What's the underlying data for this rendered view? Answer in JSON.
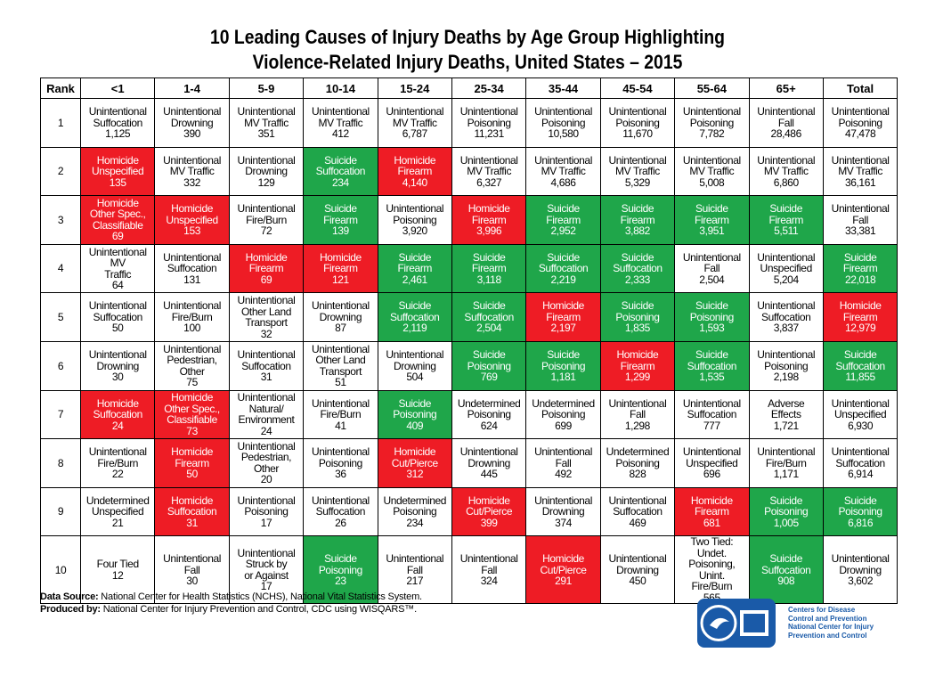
{
  "header": {
    "title_lines": [
      "10 Leading Causes of Injury Deaths by Age Group Highlighting",
      "Violence-Related Injury Deaths, United States – 2015"
    ]
  },
  "table": {
    "columns": [
      "Rank",
      "<1",
      "1-4",
      "5-9",
      "10-14",
      "15-24",
      "25-34",
      "35-44",
      "45-54",
      "55-64",
      "65+",
      "Total"
    ],
    "rows": [
      {
        "rank": "1",
        "cells": [
          {
            "cause": "Unintentional\nSuffocation",
            "count": "1,125"
          },
          {
            "cause": "Unintentional\nDrowning",
            "count": "390"
          },
          {
            "cause": "Unintentional\nMV Traffic",
            "count": "351"
          },
          {
            "cause": "Unintentional\nMV Traffic",
            "count": "412"
          },
          {
            "cause": "Unintentional\nMV Traffic",
            "count": "6,787"
          },
          {
            "cause": "Unintentional\nPoisoning",
            "count": "11,231"
          },
          {
            "cause": "Unintentional\nPoisoning",
            "count": "10,580"
          },
          {
            "cause": "Unintentional\nPoisoning",
            "count": "11,670"
          },
          {
            "cause": "Unintentional\nPoisoning",
            "count": "7,782"
          },
          {
            "cause": "Unintentional\nFall",
            "count": "28,486"
          },
          {
            "cause": "Unintentional\nPoisoning",
            "count": "47,478"
          }
        ]
      },
      {
        "rank": "2",
        "cells": [
          {
            "cause": "Homicide\nUnspecified",
            "count": "135",
            "color": "#ee1c25"
          },
          {
            "cause": "Unintentional\nMV Traffic",
            "count": "332"
          },
          {
            "cause": "Unintentional\nDrowning",
            "count": "129"
          },
          {
            "cause": "Suicide\nSuffocation",
            "count": "234",
            "color": "#1fa64a"
          },
          {
            "cause": "Homicide\nFirearm",
            "count": "4,140",
            "color": "#ee1c25"
          },
          {
            "cause": "Unintentional\nMV Traffic",
            "count": "6,327"
          },
          {
            "cause": "Unintentional\nMV Traffic",
            "count": "4,686"
          },
          {
            "cause": "Unintentional\nMV Traffic",
            "count": "5,329"
          },
          {
            "cause": "Unintentional\nMV Traffic",
            "count": "5,008"
          },
          {
            "cause": "Unintentional\nMV Traffic",
            "count": "6,860"
          },
          {
            "cause": "Unintentional\nMV Traffic",
            "count": "36,161"
          }
        ]
      },
      {
        "rank": "3",
        "cells": [
          {
            "cause": "Homicide\nOther Spec.,\nClassifiable",
            "count": "69",
            "color": "#ee1c25"
          },
          {
            "cause": "Homicide\nUnspecified",
            "count": "153",
            "color": "#ee1c25"
          },
          {
            "cause": "Unintentional\nFire/Burn",
            "count": "72"
          },
          {
            "cause": "Suicide\nFirearm",
            "count": "139",
            "color": "#1fa64a"
          },
          {
            "cause": "Unintentional\nPoisoning",
            "count": "3,920"
          },
          {
            "cause": "Homicide\nFirearm",
            "count": "3,996",
            "color": "#ee1c25"
          },
          {
            "cause": "Suicide\nFirearm",
            "count": "2,952",
            "color": "#1fa64a"
          },
          {
            "cause": "Suicide\nFirearm",
            "count": "3,882",
            "color": "#1fa64a"
          },
          {
            "cause": "Suicide\nFirearm",
            "count": "3,951",
            "color": "#1fa64a"
          },
          {
            "cause": "Suicide\nFirearm",
            "count": "5,511",
            "color": "#1fa64a"
          },
          {
            "cause": "Unintentional\nFall",
            "count": "33,381"
          }
        ]
      },
      {
        "rank": "4",
        "cells": [
          {
            "cause": "Unintentional MV\nTraffic",
            "count": "64"
          },
          {
            "cause": "Unintentional\nSuffocation",
            "count": "131"
          },
          {
            "cause": "Homicide\nFirearm",
            "count": "69",
            "color": "#ee1c25"
          },
          {
            "cause": "Homicide\nFirearm",
            "count": "121",
            "color": "#ee1c25"
          },
          {
            "cause": "Suicide\nFirearm",
            "count": "2,461",
            "color": "#1fa64a"
          },
          {
            "cause": "Suicide\nFirearm",
            "count": "3,118",
            "color": "#1fa64a"
          },
          {
            "cause": "Suicide\nSuffocation",
            "count": "2,219",
            "color": "#1fa64a"
          },
          {
            "cause": "Suicide\nSuffocation",
            "count": "2,333",
            "color": "#1fa64a"
          },
          {
            "cause": "Unintentional\nFall",
            "count": "2,504"
          },
          {
            "cause": "Unintentional\nUnspecified",
            "count": "5,204"
          },
          {
            "cause": "Suicide\nFirearm",
            "count": "22,018",
            "color": "#1fa64a"
          }
        ]
      },
      {
        "rank": "5",
        "cells": [
          {
            "cause": "Unintentional\nSuffocation",
            "count": "50"
          },
          {
            "cause": "Unintentional\nFire/Burn",
            "count": "100"
          },
          {
            "cause": "Unintentional\nOther Land\nTransport",
            "count": "32"
          },
          {
            "cause": "Unintentional\nDrowning",
            "count": "87"
          },
          {
            "cause": "Suicide\nSuffocation",
            "count": "2,119",
            "color": "#1fa64a"
          },
          {
            "cause": "Suicide\nSuffocation",
            "count": "2,504",
            "color": "#1fa64a"
          },
          {
            "cause": "Homicide\nFirearm",
            "count": "2,197",
            "color": "#ee1c25"
          },
          {
            "cause": "Suicide\nPoisoning",
            "count": "1,835",
            "color": "#1fa64a"
          },
          {
            "cause": "Suicide\nPoisoning",
            "count": "1,593",
            "color": "#1fa64a"
          },
          {
            "cause": "Unintentional\nSuffocation",
            "count": "3,837"
          },
          {
            "cause": "Homicide\nFirearm",
            "count": "12,979",
            "color": "#ee1c25"
          }
        ]
      },
      {
        "rank": "6",
        "cells": [
          {
            "cause": "Unintentional\nDrowning",
            "count": "30"
          },
          {
            "cause": "Unintentional\nPedestrian,\nOther",
            "count": "75"
          },
          {
            "cause": "Unintentional\nSuffocation",
            "count": "31"
          },
          {
            "cause": "Unintentional\nOther Land\nTransport",
            "count": "51"
          },
          {
            "cause": "Unintentional\nDrowning",
            "count": "504"
          },
          {
            "cause": "Suicide\nPoisoning",
            "count": "769",
            "color": "#1fa64a"
          },
          {
            "cause": "Suicide\nPoisoning",
            "count": "1,181",
            "color": "#1fa64a"
          },
          {
            "cause": "Homicide\nFirearm",
            "count": "1,299",
            "color": "#ee1c25"
          },
          {
            "cause": "Suicide\nSuffocation",
            "count": "1,535",
            "color": "#1fa64a"
          },
          {
            "cause": "Unintentional\nPoisoning",
            "count": "2,198"
          },
          {
            "cause": "Suicide\nSuffocation",
            "count": "11,855",
            "color": "#1fa64a"
          }
        ]
      },
      {
        "rank": "7",
        "cells": [
          {
            "cause": "Homicide\nSuffocation",
            "count": "24",
            "color": "#ee1c25"
          },
          {
            "cause": "Homicide\nOther Spec.,\nClassifiable",
            "count": "73",
            "color": "#ee1c25"
          },
          {
            "cause": "Unintentional\nNatural/\nEnvironment",
            "count": "24"
          },
          {
            "cause": "Unintentional\nFire/Burn",
            "count": "41"
          },
          {
            "cause": "Suicide\nPoisoning",
            "count": "409",
            "color": "#1fa64a"
          },
          {
            "cause": "Undetermined\nPoisoning",
            "count": "624"
          },
          {
            "cause": "Undetermined\nPoisoning",
            "count": "699"
          },
          {
            "cause": "Unintentional\nFall",
            "count": "1,298"
          },
          {
            "cause": "Unintentional\nSuffocation",
            "count": "777"
          },
          {
            "cause": "Adverse\nEffects",
            "count": "1,721"
          },
          {
            "cause": "Unintentional\nUnspecified",
            "count": "6,930"
          }
        ]
      },
      {
        "rank": "8",
        "cells": [
          {
            "cause": "Unintentional\nFire/Burn",
            "count": "22"
          },
          {
            "cause": "Homicide\nFirearm",
            "count": "50",
            "color": "#ee1c25"
          },
          {
            "cause": "Unintentional\nPedestrian,\nOther",
            "count": "20"
          },
          {
            "cause": "Unintentional\nPoisoning",
            "count": "36"
          },
          {
            "cause": "Homicide\nCut/Pierce",
            "count": "312",
            "color": "#ee1c25"
          },
          {
            "cause": "Unintentional\nDrowning",
            "count": "445"
          },
          {
            "cause": "Unintentional\nFall",
            "count": "492"
          },
          {
            "cause": "Undetermined\nPoisoning",
            "count": "828"
          },
          {
            "cause": "Unintentional\nUnspecified",
            "count": "696"
          },
          {
            "cause": "Unintentional\nFire/Burn",
            "count": "1,171"
          },
          {
            "cause": "Unintentional\nSuffocation",
            "count": "6,914"
          }
        ]
      },
      {
        "rank": "9",
        "cells": [
          {
            "cause": "Undetermined\nUnspecified",
            "count": "21"
          },
          {
            "cause": "Homicide\nSuffocation",
            "count": "31",
            "color": "#ee1c25"
          },
          {
            "cause": "Unintentional\nPoisoning",
            "count": "17"
          },
          {
            "cause": "Unintentional\nSuffocation",
            "count": "26"
          },
          {
            "cause": "Undetermined\nPoisoning",
            "count": "234"
          },
          {
            "cause": "Homicide\nCut/Pierce",
            "count": "399",
            "color": "#ee1c25"
          },
          {
            "cause": "Unintentional\nDrowning",
            "count": "374"
          },
          {
            "cause": "Unintentional\nSuffocation",
            "count": "469"
          },
          {
            "cause": "Homicide\nFirearm",
            "count": "681",
            "color": "#ee1c25"
          },
          {
            "cause": "Suicide\nPoisoning",
            "count": "1,005",
            "color": "#1fa64a"
          },
          {
            "cause": "Suicide\nPoisoning",
            "count": "6,816",
            "color": "#1fa64a"
          }
        ]
      },
      {
        "rank": "10",
        "cells": [
          {
            "cause": "Four Tied",
            "count": "12"
          },
          {
            "cause": "Unintentional\nFall",
            "count": "30"
          },
          {
            "cause": "Unintentional\nStruck by\nor Against",
            "count": "17"
          },
          {
            "cause": "Suicide\nPoisoning",
            "count": "23",
            "color": "#1fa64a"
          },
          {
            "cause": "Unintentional\nFall",
            "count": "217"
          },
          {
            "cause": "Unintentional\nFall",
            "count": "324"
          },
          {
            "cause": "Homicide\nCut/Pierce",
            "count": "291",
            "color": "#ee1c25"
          },
          {
            "cause": "Unintentional\nDrowning",
            "count": "450"
          },
          {
            "cause": "Two Tied: Undet.\nPoisoning, Unint.\nFire/Burn",
            "count": "565"
          },
          {
            "cause": "Suicide\nSuffocation",
            "count": "908",
            "color": "#1fa64a"
          },
          {
            "cause": "Unintentional\nDrowning",
            "count": "3,602"
          }
        ]
      }
    ]
  },
  "footer": {
    "source_label": "Data Source:",
    "source_text": " National Center for Health Statistics (NCHS), National Vital Statistics System.",
    "produced_label": "Produced by:",
    "produced_text": " National Center for Injury Prevention and Control, CDC using WISQARS™."
  },
  "logo": {
    "text": "Centers for Disease\nControl and Prevention\nNational Center for Injury\nPrevention and Control"
  }
}
